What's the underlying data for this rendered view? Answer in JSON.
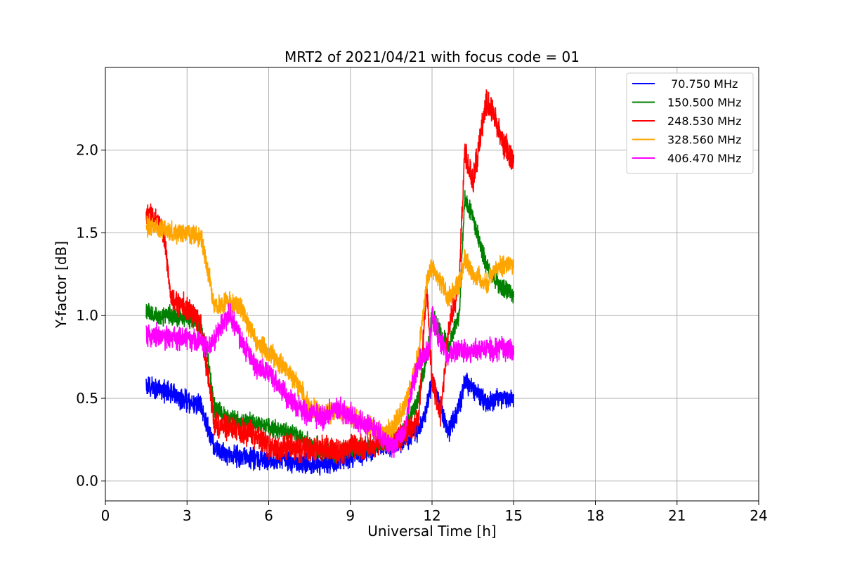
{
  "chart_data": {
    "type": "line",
    "title": "MRT2 of 2021/04/21 with focus code = 01",
    "xlabel": "Universal Time [h]",
    "ylabel": "Y-factor [dB]",
    "xlim": [
      0,
      24
    ],
    "ylim": [
      -0.12,
      2.5
    ],
    "xticks": [
      0,
      3,
      6,
      9,
      12,
      15,
      18,
      21,
      24
    ],
    "xtick_labels": [
      "0",
      "3",
      "6",
      "9",
      "12",
      "15",
      "18",
      "21",
      "24"
    ],
    "yticks": [
      0.0,
      0.5,
      1.0,
      1.5,
      2.0
    ],
    "ytick_labels": [
      "0.0",
      "0.5",
      "1.0",
      "1.5",
      "2.0"
    ],
    "grid": true,
    "legend_position": "top-right",
    "data_range_hours": [
      1.5,
      15.0
    ],
    "series": [
      {
        "name": " 70.750 MHz",
        "color": "#0000ff",
        "noise": 0.05,
        "x": [
          1.5,
          2.0,
          2.5,
          3.0,
          3.5,
          3.8,
          4.0,
          4.5,
          5.0,
          5.5,
          6.0,
          6.5,
          7.0,
          7.5,
          8.0,
          8.5,
          9.0,
          9.5,
          10.0,
          10.5,
          11.0,
          11.5,
          11.8,
          12.0,
          12.3,
          12.6,
          13.0,
          13.2,
          13.5,
          14.0,
          14.5,
          15.0
        ],
        "y": [
          0.58,
          0.55,
          0.52,
          0.48,
          0.45,
          0.3,
          0.2,
          0.16,
          0.15,
          0.14,
          0.12,
          0.13,
          0.12,
          0.1,
          0.1,
          0.12,
          0.15,
          0.17,
          0.2,
          0.22,
          0.25,
          0.3,
          0.45,
          0.6,
          0.45,
          0.3,
          0.45,
          0.6,
          0.55,
          0.48,
          0.5,
          0.5
        ]
      },
      {
        "name": "150.500 MHz",
        "color": "#008000",
        "noise": 0.045,
        "x": [
          1.5,
          2.0,
          2.5,
          3.0,
          3.5,
          3.8,
          4.0,
          4.5,
          5.0,
          5.5,
          6.0,
          6.5,
          7.0,
          7.5,
          8.0,
          8.5,
          9.0,
          9.5,
          10.0,
          10.5,
          11.0,
          11.5,
          11.8,
          12.0,
          12.3,
          12.6,
          13.0,
          13.2,
          13.5,
          14.0,
          14.5,
          15.0
        ],
        "y": [
          1.02,
          1.0,
          1.0,
          0.98,
          0.95,
          0.7,
          0.45,
          0.38,
          0.36,
          0.35,
          0.32,
          0.3,
          0.28,
          0.22,
          0.18,
          0.17,
          0.2,
          0.2,
          0.22,
          0.22,
          0.3,
          0.5,
          0.75,
          1.0,
          0.9,
          0.8,
          1.0,
          1.7,
          1.6,
          1.3,
          1.18,
          1.12
        ]
      },
      {
        "name": "248.530 MHz",
        "color": "#ff0000",
        "noise": 0.06,
        "x": [
          1.5,
          2.0,
          2.2,
          2.4,
          3.0,
          3.5,
          3.8,
          4.0,
          4.5,
          5.0,
          5.5,
          6.0,
          6.5,
          7.0,
          7.5,
          8.0,
          8.5,
          9.0,
          9.5,
          10.0,
          10.5,
          11.0,
          11.5,
          11.8,
          12.0,
          12.3,
          12.6,
          13.0,
          13.2,
          13.5,
          14.0,
          14.3,
          14.6,
          15.0
        ],
        "y": [
          1.62,
          1.55,
          1.45,
          1.1,
          1.05,
          0.95,
          0.6,
          0.35,
          0.32,
          0.3,
          0.28,
          0.22,
          0.2,
          0.2,
          0.18,
          0.2,
          0.18,
          0.2,
          0.2,
          0.22,
          0.25,
          0.28,
          0.35,
          1.2,
          0.6,
          0.4,
          0.9,
          1.2,
          2.0,
          1.8,
          2.3,
          2.2,
          2.05,
          1.95
        ]
      },
      {
        "name": "328.560 MHz",
        "color": "#ffa500",
        "noise": 0.05,
        "x": [
          1.5,
          2.0,
          2.5,
          3.0,
          3.5,
          3.8,
          4.0,
          4.5,
          5.0,
          5.5,
          6.0,
          6.5,
          7.0,
          7.5,
          8.0,
          8.5,
          9.0,
          9.5,
          10.0,
          10.5,
          11.0,
          11.5,
          11.8,
          12.0,
          12.3,
          12.6,
          13.0,
          13.2,
          13.5,
          14.0,
          14.5,
          15.0
        ],
        "y": [
          1.55,
          1.52,
          1.5,
          1.5,
          1.48,
          1.25,
          1.05,
          1.08,
          1.05,
          0.85,
          0.78,
          0.7,
          0.6,
          0.45,
          0.4,
          0.42,
          0.4,
          0.35,
          0.3,
          0.3,
          0.45,
          0.75,
          1.2,
          1.3,
          1.2,
          1.1,
          1.2,
          1.35,
          1.25,
          1.2,
          1.3,
          1.3
        ]
      },
      {
        "name": "406.470 MHz",
        "color": "#ff00ff",
        "noise": 0.055,
        "x": [
          1.5,
          2.0,
          2.5,
          3.0,
          3.5,
          3.8,
          4.0,
          4.3,
          4.6,
          5.0,
          5.5,
          6.0,
          6.5,
          7.0,
          7.5,
          8.0,
          8.5,
          9.0,
          9.5,
          10.0,
          10.5,
          11.0,
          11.3,
          11.6,
          11.9,
          12.0,
          12.3,
          12.6,
          13.0,
          13.5,
          14.0,
          14.5,
          15.0
        ],
        "y": [
          0.88,
          0.88,
          0.86,
          0.86,
          0.84,
          0.8,
          0.85,
          0.95,
          1.0,
          0.85,
          0.7,
          0.65,
          0.55,
          0.45,
          0.4,
          0.38,
          0.45,
          0.4,
          0.35,
          0.3,
          0.2,
          0.3,
          0.6,
          0.75,
          0.8,
          1.0,
          0.85,
          0.75,
          0.8,
          0.78,
          0.8,
          0.8,
          0.8
        ]
      }
    ]
  }
}
